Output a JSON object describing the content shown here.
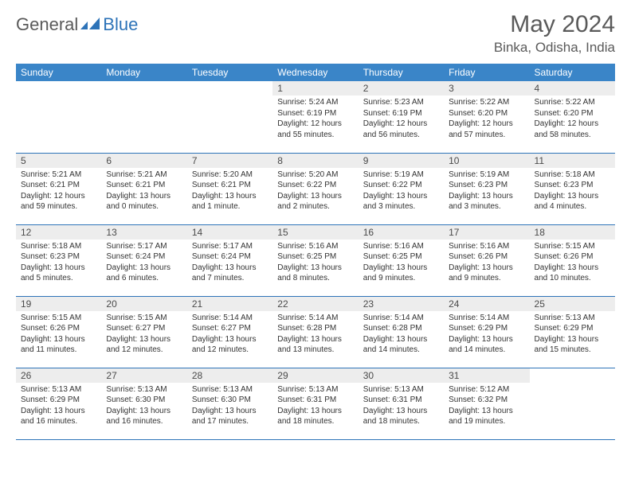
{
  "brand": {
    "name_part1": "General",
    "name_part2": "Blue",
    "text_color": "#5a5a5a",
    "accent_color": "#2d73b8"
  },
  "title": "May 2024",
  "location": "Binka, Odisha, India",
  "colors": {
    "header_bg": "#3a85c8",
    "header_text": "#ffffff",
    "daynum_bg": "#ededed",
    "border": "#2d73b8",
    "body_text": "#333333"
  },
  "weekdays": [
    "Sunday",
    "Monday",
    "Tuesday",
    "Wednesday",
    "Thursday",
    "Friday",
    "Saturday"
  ],
  "weeks": [
    [
      null,
      null,
      null,
      {
        "d": "1",
        "sr": "5:24 AM",
        "ss": "6:19 PM",
        "dl": "12 hours and 55 minutes."
      },
      {
        "d": "2",
        "sr": "5:23 AM",
        "ss": "6:19 PM",
        "dl": "12 hours and 56 minutes."
      },
      {
        "d": "3",
        "sr": "5:22 AM",
        "ss": "6:20 PM",
        "dl": "12 hours and 57 minutes."
      },
      {
        "d": "4",
        "sr": "5:22 AM",
        "ss": "6:20 PM",
        "dl": "12 hours and 58 minutes."
      }
    ],
    [
      {
        "d": "5",
        "sr": "5:21 AM",
        "ss": "6:21 PM",
        "dl": "12 hours and 59 minutes."
      },
      {
        "d": "6",
        "sr": "5:21 AM",
        "ss": "6:21 PM",
        "dl": "13 hours and 0 minutes."
      },
      {
        "d": "7",
        "sr": "5:20 AM",
        "ss": "6:21 PM",
        "dl": "13 hours and 1 minute."
      },
      {
        "d": "8",
        "sr": "5:20 AM",
        "ss": "6:22 PM",
        "dl": "13 hours and 2 minutes."
      },
      {
        "d": "9",
        "sr": "5:19 AM",
        "ss": "6:22 PM",
        "dl": "13 hours and 3 minutes."
      },
      {
        "d": "10",
        "sr": "5:19 AM",
        "ss": "6:23 PM",
        "dl": "13 hours and 3 minutes."
      },
      {
        "d": "11",
        "sr": "5:18 AM",
        "ss": "6:23 PM",
        "dl": "13 hours and 4 minutes."
      }
    ],
    [
      {
        "d": "12",
        "sr": "5:18 AM",
        "ss": "6:23 PM",
        "dl": "13 hours and 5 minutes."
      },
      {
        "d": "13",
        "sr": "5:17 AM",
        "ss": "6:24 PM",
        "dl": "13 hours and 6 minutes."
      },
      {
        "d": "14",
        "sr": "5:17 AM",
        "ss": "6:24 PM",
        "dl": "13 hours and 7 minutes."
      },
      {
        "d": "15",
        "sr": "5:16 AM",
        "ss": "6:25 PM",
        "dl": "13 hours and 8 minutes."
      },
      {
        "d": "16",
        "sr": "5:16 AM",
        "ss": "6:25 PM",
        "dl": "13 hours and 9 minutes."
      },
      {
        "d": "17",
        "sr": "5:16 AM",
        "ss": "6:26 PM",
        "dl": "13 hours and 9 minutes."
      },
      {
        "d": "18",
        "sr": "5:15 AM",
        "ss": "6:26 PM",
        "dl": "13 hours and 10 minutes."
      }
    ],
    [
      {
        "d": "19",
        "sr": "5:15 AM",
        "ss": "6:26 PM",
        "dl": "13 hours and 11 minutes."
      },
      {
        "d": "20",
        "sr": "5:15 AM",
        "ss": "6:27 PM",
        "dl": "13 hours and 12 minutes."
      },
      {
        "d": "21",
        "sr": "5:14 AM",
        "ss": "6:27 PM",
        "dl": "13 hours and 12 minutes."
      },
      {
        "d": "22",
        "sr": "5:14 AM",
        "ss": "6:28 PM",
        "dl": "13 hours and 13 minutes."
      },
      {
        "d": "23",
        "sr": "5:14 AM",
        "ss": "6:28 PM",
        "dl": "13 hours and 14 minutes."
      },
      {
        "d": "24",
        "sr": "5:14 AM",
        "ss": "6:29 PM",
        "dl": "13 hours and 14 minutes."
      },
      {
        "d": "25",
        "sr": "5:13 AM",
        "ss": "6:29 PM",
        "dl": "13 hours and 15 minutes."
      }
    ],
    [
      {
        "d": "26",
        "sr": "5:13 AM",
        "ss": "6:29 PM",
        "dl": "13 hours and 16 minutes."
      },
      {
        "d": "27",
        "sr": "5:13 AM",
        "ss": "6:30 PM",
        "dl": "13 hours and 16 minutes."
      },
      {
        "d": "28",
        "sr": "5:13 AM",
        "ss": "6:30 PM",
        "dl": "13 hours and 17 minutes."
      },
      {
        "d": "29",
        "sr": "5:13 AM",
        "ss": "6:31 PM",
        "dl": "13 hours and 18 minutes."
      },
      {
        "d": "30",
        "sr": "5:13 AM",
        "ss": "6:31 PM",
        "dl": "13 hours and 18 minutes."
      },
      {
        "d": "31",
        "sr": "5:12 AM",
        "ss": "6:32 PM",
        "dl": "13 hours and 19 minutes."
      },
      null
    ]
  ],
  "labels": {
    "sunrise": "Sunrise: ",
    "sunset": "Sunset: ",
    "daylight": "Daylight: "
  }
}
